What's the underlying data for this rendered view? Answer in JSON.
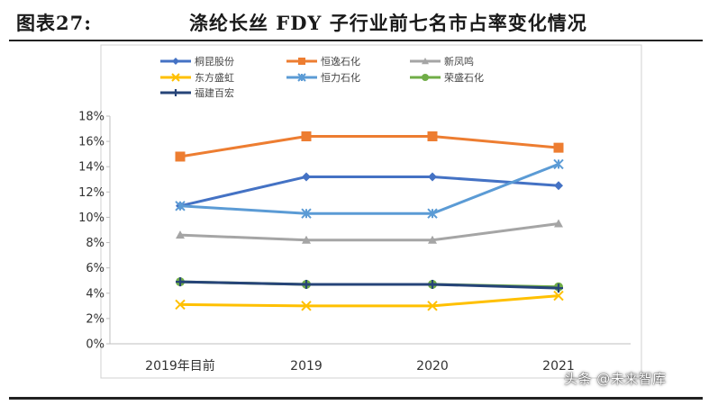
{
  "header": {
    "figure_number": "图表27:",
    "title": "涤纶长丝 FDY 子行业前七名市占率变化情况"
  },
  "watermark": "头条 @未来智库",
  "colors": {
    "rule": "#222222"
  },
  "chart_data": {
    "type": "line",
    "title": "",
    "xlabel": "",
    "ylabel": "",
    "categories": [
      "2019年目前",
      "2019",
      "2020",
      "2021"
    ],
    "ylim": [
      0,
      18
    ],
    "yticks": [
      0,
      2,
      4,
      6,
      8,
      10,
      12,
      14,
      16,
      18
    ],
    "ytick_labels": [
      "0%",
      "2%",
      "4%",
      "6%",
      "8%",
      "10%",
      "12%",
      "14%",
      "16%",
      "18%"
    ],
    "grid": false,
    "legend_position": "top-left",
    "series": [
      {
        "name": "桐昆股份",
        "color": "#4472C4",
        "marker": "diamond",
        "values": [
          10.9,
          13.2,
          13.2,
          12.5
        ]
      },
      {
        "name": "恒逸石化",
        "color": "#ED7D31",
        "marker": "square",
        "values": [
          14.8,
          16.4,
          16.4,
          15.5
        ]
      },
      {
        "name": "新凤鸣",
        "color": "#A5A5A5",
        "marker": "triangle",
        "values": [
          8.6,
          8.2,
          8.2,
          9.5
        ]
      },
      {
        "name": "东方盛虹",
        "color": "#FFC000",
        "marker": "x",
        "values": [
          3.1,
          3.0,
          3.0,
          3.8
        ]
      },
      {
        "name": "恒力石化",
        "color": "#5B9BD5",
        "marker": "star",
        "values": [
          10.9,
          10.3,
          10.3,
          14.2
        ]
      },
      {
        "name": "荣盛石化",
        "color": "#70AD47",
        "marker": "circle",
        "values": [
          4.9,
          4.7,
          4.7,
          4.5
        ]
      },
      {
        "name": "福建百宏",
        "color": "#264478",
        "marker": "plus",
        "values": [
          4.9,
          4.7,
          4.7,
          4.4
        ]
      }
    ]
  }
}
